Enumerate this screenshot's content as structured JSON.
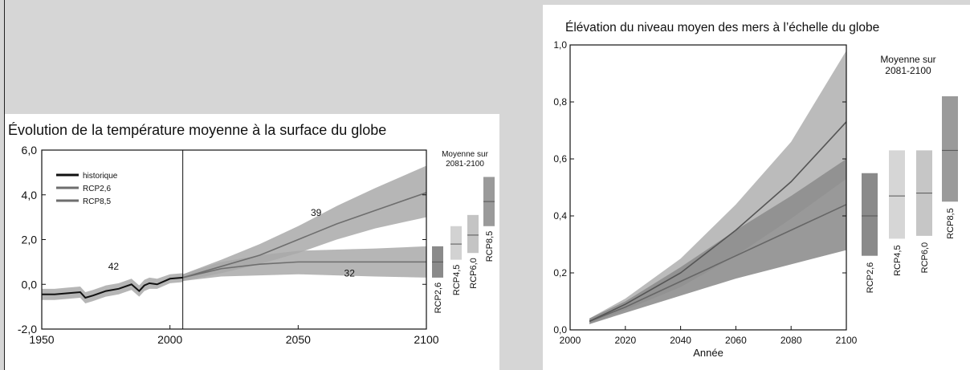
{
  "chart_data": [
    {
      "type": "line",
      "title": "Évolution de la température moyenne à la surface du globe",
      "xlim": [
        1950,
        2100
      ],
      "ylim": [
        -2,
        6
      ],
      "x_ticks": [
        1950,
        2000,
        2050,
        2100
      ],
      "y_ticks": [
        "-2,0",
        "0,0",
        "2,0",
        "4,0",
        "6,0"
      ],
      "y_tick_values": [
        -2,
        0,
        2,
        4,
        6
      ],
      "legend": [
        "historique",
        "RCP2,6",
        "RCP8,5"
      ],
      "legend_position": "top-left",
      "divider_year": 2005,
      "annotations": [
        {
          "text": "42",
          "x": 1978,
          "y": 0.8
        },
        {
          "text": "39",
          "x": 2057,
          "y": 3.2
        },
        {
          "text": "32",
          "x": 2070,
          "y": 0.5
        }
      ],
      "series": [
        {
          "name": "historique",
          "color": "#111111",
          "x": [
            1950,
            1955,
            1960,
            1965,
            1967,
            1970,
            1975,
            1980,
            1985,
            1988,
            1990,
            1992,
            1995,
            2000,
            2005
          ],
          "y": [
            -0.45,
            -0.45,
            -0.4,
            -0.35,
            -0.6,
            -0.5,
            -0.3,
            -0.2,
            0,
            -0.3,
            -0.05,
            0.05,
            0.0,
            0.25,
            0.3
          ],
          "band_lower": [
            -0.7,
            -0.7,
            -0.65,
            -0.6,
            -0.85,
            -0.75,
            -0.55,
            -0.45,
            -0.25,
            -0.55,
            -0.3,
            -0.2,
            -0.2,
            0.05,
            0.1
          ],
          "band_upper": [
            -0.2,
            -0.2,
            -0.15,
            -0.1,
            -0.35,
            -0.25,
            -0.05,
            0.05,
            0.25,
            -0.05,
            0.2,
            0.3,
            0.25,
            0.45,
            0.5
          ]
        },
        {
          "name": "RCP2,6",
          "color": "#6e6e6e",
          "x": [
            2005,
            2020,
            2035,
            2050,
            2065,
            2080,
            2100
          ],
          "y": [
            0.3,
            0.7,
            0.9,
            1.0,
            1.0,
            1.0,
            1.0
          ],
          "band_lower": [
            0.15,
            0.35,
            0.4,
            0.45,
            0.4,
            0.35,
            0.3
          ],
          "band_upper": [
            0.45,
            1.0,
            1.3,
            1.5,
            1.55,
            1.6,
            1.7
          ]
        },
        {
          "name": "RCP8,5",
          "color": "#6e6e6e",
          "x": [
            2005,
            2020,
            2035,
            2050,
            2065,
            2080,
            2100
          ],
          "y": [
            0.3,
            0.8,
            1.3,
            2.0,
            2.7,
            3.3,
            4.1
          ],
          "band_lower": [
            0.15,
            0.5,
            0.9,
            1.4,
            2.0,
            2.5,
            3.0
          ],
          "band_upper": [
            0.45,
            1.1,
            1.8,
            2.6,
            3.5,
            4.3,
            5.3
          ]
        }
      ],
      "side_boxes_title": "Moyenne sur\n2081-2100",
      "side_boxes": [
        {
          "label": "RCP2,6",
          "low": 0.3,
          "mean": 1.0,
          "high": 1.7,
          "color": "#8a8a8a"
        },
        {
          "label": "RCP4,5",
          "low": 1.1,
          "mean": 1.8,
          "high": 2.6,
          "color": "#d2d2d2"
        },
        {
          "label": "RCP6,0",
          "low": 1.4,
          "mean": 2.2,
          "high": 3.1,
          "color": "#c4c4c4"
        },
        {
          "label": "RCP8,5",
          "low": 2.6,
          "mean": 3.7,
          "high": 4.8,
          "color": "#9a9a9a"
        }
      ]
    },
    {
      "type": "line",
      "title": "Élévation du niveau moyen des mers à l’échelle du globe",
      "xlabel": "Année",
      "xlim": [
        2000,
        2100
      ],
      "ylim": [
        0,
        1
      ],
      "x_ticks": [
        2000,
        2020,
        2040,
        2060,
        2080,
        2100
      ],
      "y_ticks": [
        "0,0",
        "0,2",
        "0,4",
        "0,6",
        "0,8",
        "1,0"
      ],
      "y_tick_values": [
        0,
        0.2,
        0.4,
        0.6,
        0.8,
        1.0
      ],
      "series": [
        {
          "name": "RCP2,6",
          "color": "#666666",
          "x": [
            2007,
            2020,
            2040,
            2060,
            2080,
            2100
          ],
          "y": [
            0.03,
            0.08,
            0.17,
            0.26,
            0.35,
            0.44
          ],
          "band_lower": [
            0.02,
            0.06,
            0.12,
            0.18,
            0.23,
            0.28
          ],
          "band_upper": [
            0.04,
            0.1,
            0.22,
            0.35,
            0.47,
            0.6
          ]
        },
        {
          "name": "RCP8,5",
          "color": "#555555",
          "x": [
            2007,
            2020,
            2040,
            2060,
            2080,
            2100
          ],
          "y": [
            0.03,
            0.09,
            0.2,
            0.35,
            0.52,
            0.73
          ],
          "band_lower": [
            0.02,
            0.07,
            0.15,
            0.26,
            0.39,
            0.53
          ],
          "band_upper": [
            0.04,
            0.11,
            0.25,
            0.44,
            0.66,
            0.98
          ]
        }
      ],
      "side_boxes_title": "Moyenne sur\n2081-2100",
      "side_boxes": [
        {
          "label": "RCP2,6",
          "low": 0.26,
          "mean": 0.4,
          "high": 0.55,
          "color": "#8a8a8a"
        },
        {
          "label": "RCP4,5",
          "low": 0.32,
          "mean": 0.47,
          "high": 0.63,
          "color": "#d6d6d6"
        },
        {
          "label": "RCP6,0",
          "low": 0.33,
          "mean": 0.48,
          "high": 0.63,
          "color": "#c6c6c6"
        },
        {
          "label": "RCP8,5",
          "low": 0.45,
          "mean": 0.63,
          "high": 0.82,
          "color": "#9a9a9a"
        }
      ]
    }
  ]
}
